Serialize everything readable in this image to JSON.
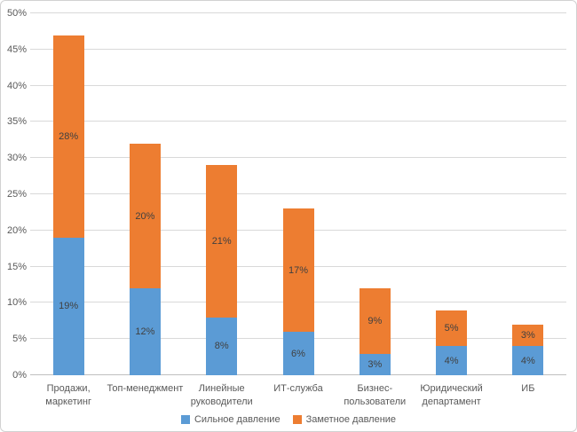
{
  "chart": {
    "colors": {
      "series_strong": "#5B9BD5",
      "series_notable": "#ED7D31",
      "gridline": "#D9D9D9",
      "axis_line": "#BFBFBF",
      "tick_text": "#595959",
      "data_label_text": "#404040",
      "frame_border": "#D2D2D2",
      "background": "#FFFFFF"
    }
  },
  "chart_data": {
    "type": "bar",
    "stacked": true,
    "title": "",
    "xlabel": "",
    "ylabel": "",
    "categories": [
      "Продажи,\nмаркетинг",
      "Топ-менеджмент",
      "Линейные\nруководители",
      "ИТ-служба",
      "Бизнес-\nпользователи",
      "Юридический\nдепартамент",
      "ИБ"
    ],
    "series": [
      {
        "name": "Сильное давление",
        "color": "#5B9BD5",
        "values": [
          19,
          12,
          8,
          6,
          3,
          4,
          4
        ]
      },
      {
        "name": "Заметное давление",
        "color": "#ED7D31",
        "values": [
          28,
          20,
          21,
          17,
          9,
          5,
          3
        ]
      }
    ],
    "stack_totals": [
      47,
      32,
      29,
      23,
      12,
      9,
      7
    ],
    "data_labels": [
      "19%",
      "12%",
      "8%",
      "6%",
      "3%",
      "4%",
      "4%",
      "28%",
      "20%",
      "21%",
      "17%",
      "9%",
      "5%",
      "3%"
    ],
    "ylim": [
      0,
      50
    ],
    "ytick_step": 5,
    "ytick_labels": [
      "0%",
      "5%",
      "10%",
      "15%",
      "20%",
      "25%",
      "30%",
      "35%",
      "40%",
      "45%",
      "50%"
    ],
    "grid": true,
    "legend_position": "bottom"
  }
}
